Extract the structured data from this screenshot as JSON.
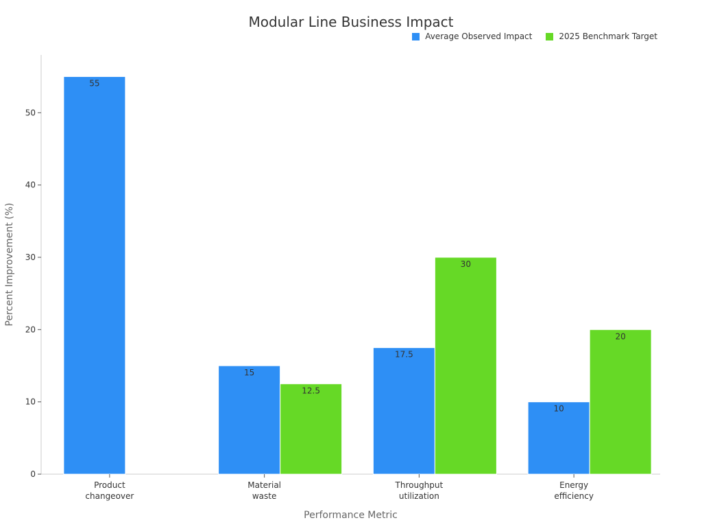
{
  "chart_data": {
    "type": "bar",
    "title": "Modular Line Business Impact",
    "xlabel": "Performance Metric",
    "ylabel": "Percent Improvement (%)",
    "categories": [
      [
        "Product",
        "changeover"
      ],
      [
        "Material",
        "waste"
      ],
      [
        "Throughput",
        "utilization"
      ],
      [
        "Energy",
        "efficiency"
      ]
    ],
    "series": [
      {
        "name": "Average Observed Impact",
        "color": "#2e8ff5",
        "values": [
          55,
          15,
          17.5,
          10
        ],
        "labels": [
          "55",
          "15",
          "17.5",
          "10"
        ]
      },
      {
        "name": "2025 Benchmark Target",
        "color": "#66d926",
        "values": [
          null,
          12.5,
          30,
          20
        ],
        "labels": [
          "",
          "12.5",
          "30",
          "20"
        ]
      }
    ],
    "ylim": [
      0,
      58
    ],
    "yticks": [
      0,
      10,
      20,
      30,
      40,
      50
    ],
    "legend_position": "top-right",
    "grid": false
  }
}
